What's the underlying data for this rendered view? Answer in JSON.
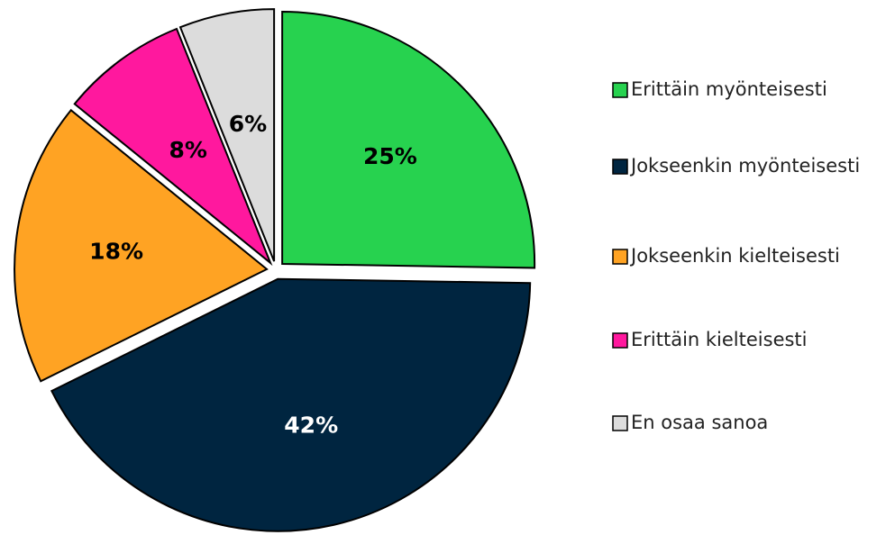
{
  "chart_data": {
    "type": "pie",
    "categories": [
      "Erittäin myönteisesti",
      "Jokseenkin myönteisesti",
      "Jokseenkin kielteisesti",
      "Erittäin kielteisesti",
      "En osaa sanoa"
    ],
    "values": [
      25,
      42,
      18,
      8,
      6
    ],
    "value_labels": [
      "25%",
      "42%",
      "18%",
      "8%",
      "6%"
    ],
    "colors": [
      "#27d24f",
      "#002540",
      "#ffa323",
      "#ff189e",
      "#dcdcdc"
    ],
    "legend": "right"
  }
}
